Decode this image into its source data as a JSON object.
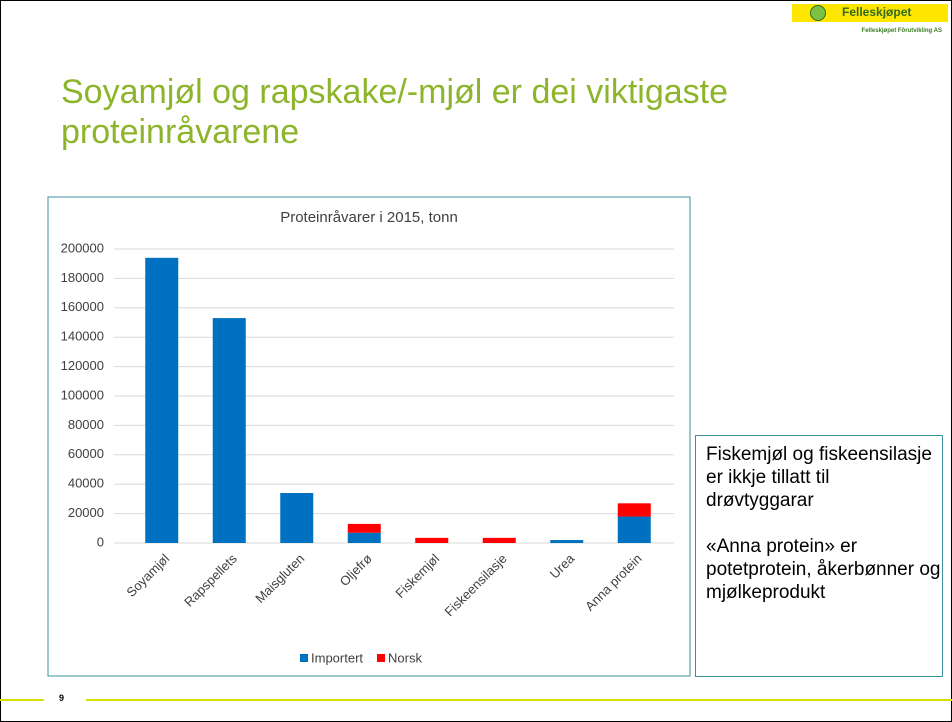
{
  "logo": {
    "name": "Felleskjøpet",
    "subtitle": "Felleskjøpet Fôrutvikling AS"
  },
  "title": "Soyamjøl og rapskake/-mjøl er dei viktigaste proteinråvarene",
  "chart_data": {
    "type": "stacked_bar",
    "title": "Proteinråvarer i 2015, tonn",
    "categories": [
      "Soyamjøl",
      "Rapspellets",
      "Maisgluten",
      "Oljefrø",
      "Fiskemjøl",
      "Fiskeensilasje",
      "Urea",
      "Anna protein"
    ],
    "series": [
      {
        "name": "Importert",
        "color": "#0070c0",
        "values": [
          194000,
          153000,
          34000,
          7000,
          0,
          0,
          2000,
          18000
        ]
      },
      {
        "name": "Norsk",
        "color": "#ff0000",
        "values": [
          0,
          0,
          0,
          6000,
          3500,
          3500,
          0,
          9000
        ]
      }
    ],
    "ylim": [
      0,
      200000
    ],
    "yticks": [
      0,
      20000,
      40000,
      60000,
      80000,
      100000,
      120000,
      140000,
      160000,
      180000,
      200000
    ],
    "grid": true,
    "legend": "bottom"
  },
  "note": {
    "paragraphs": [
      "Fiskemjøl og fiskeensilasje er ikkje tillatt til drøvtyggarar",
      "«Anna protein» er potetprotein, åkerbønner og mjølkeprodukt"
    ]
  },
  "page_number": "9"
}
